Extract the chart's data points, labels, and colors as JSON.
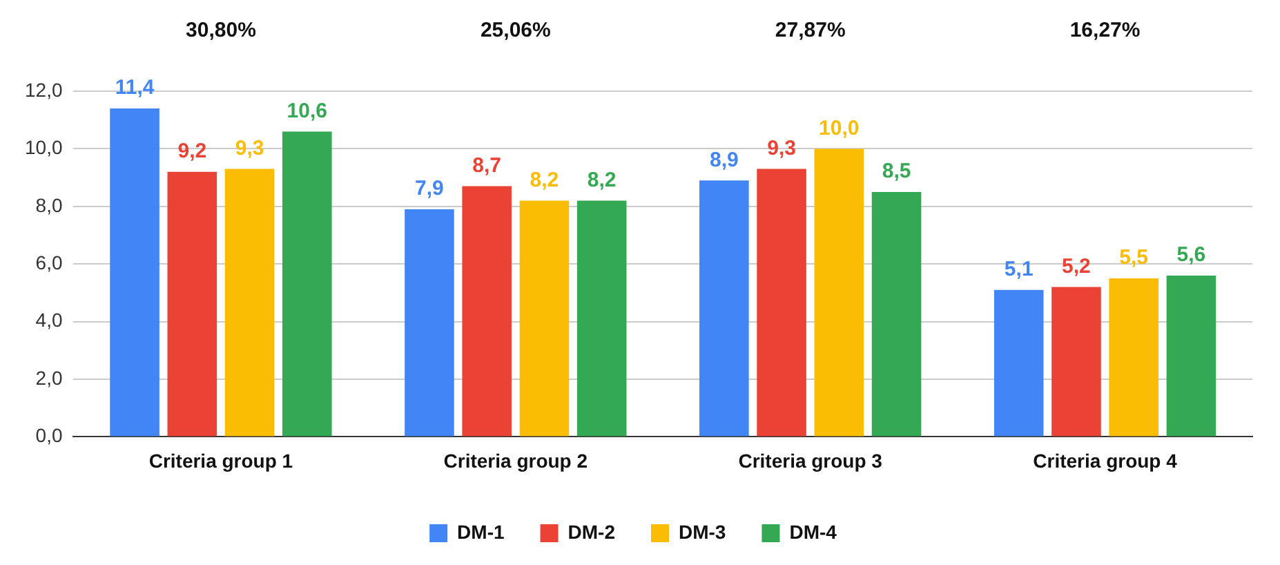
{
  "chart_data": {
    "type": "bar",
    "categories": [
      "Criteria group 1",
      "Criteria group 2",
      "Criteria group 3",
      "Criteria group 4"
    ],
    "series": [
      {
        "name": "DM-1",
        "color": "#4285f4",
        "values": [
          11.4,
          7.9,
          8.9,
          5.1
        ],
        "value_labels": [
          "11,4",
          "7,9",
          "8,9",
          "5,1"
        ]
      },
      {
        "name": "DM-2",
        "color": "#ea4335",
        "values": [
          9.2,
          8.7,
          9.3,
          5.2
        ],
        "value_labels": [
          "9,2",
          "8,7",
          "9,3",
          "5,2"
        ]
      },
      {
        "name": "DM-3",
        "color": "#fbbc04",
        "values": [
          9.3,
          8.2,
          10.0,
          5.5
        ],
        "value_labels": [
          "9,3",
          "8,2",
          "10,0",
          "5,5"
        ]
      },
      {
        "name": "DM-4",
        "color": "#34a853",
        "values": [
          10.6,
          8.2,
          8.5,
          5.6
        ],
        "value_labels": [
          "10,6",
          "8,2",
          "8,5",
          "5,6"
        ]
      }
    ],
    "ylim": [
      0,
      12
    ],
    "yticks": [
      {
        "value": 0,
        "label": "0,0"
      },
      {
        "value": 2,
        "label": "2,0"
      },
      {
        "value": 4,
        "label": "4,0"
      },
      {
        "value": 6,
        "label": "6,0"
      },
      {
        "value": 8,
        "label": "8,0"
      },
      {
        "value": 10,
        "label": "10,0"
      },
      {
        "value": 12,
        "label": "12,0"
      }
    ],
    "grid": "y",
    "legend": "bottom",
    "annotations": [
      "30,80%",
      "25,06%",
      "27,87%",
      "16,27%"
    ]
  }
}
